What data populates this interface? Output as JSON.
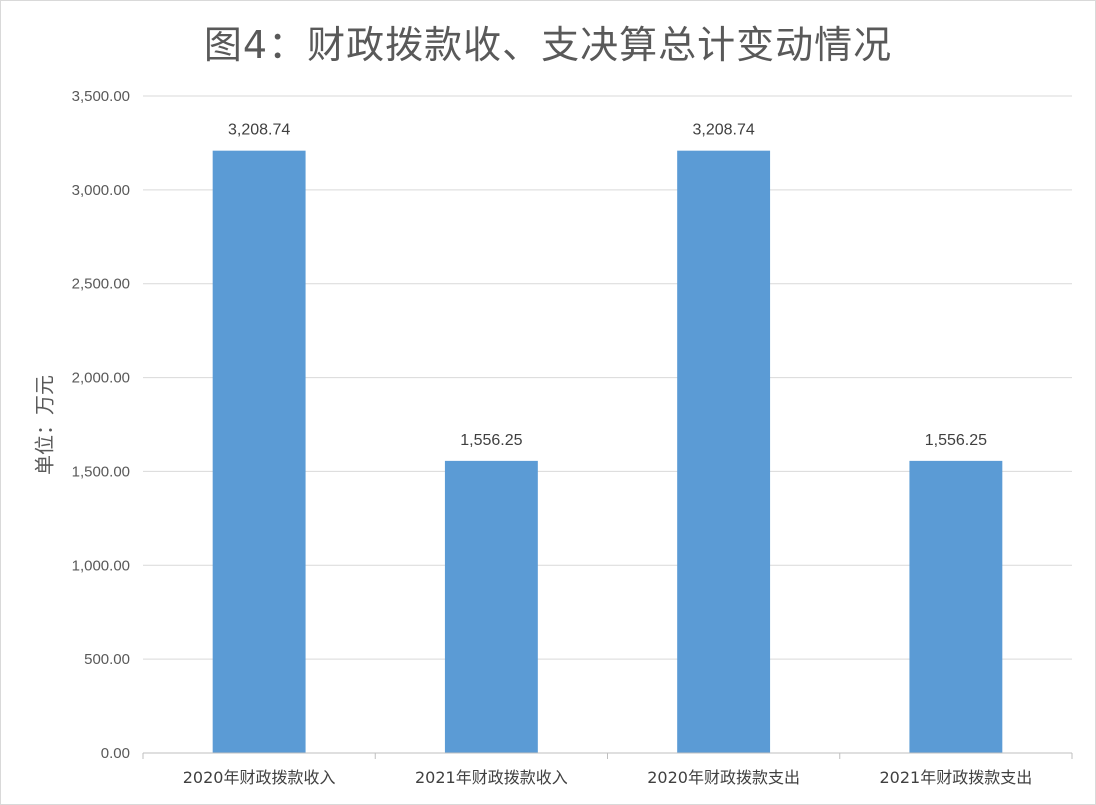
{
  "chart_data": {
    "type": "bar",
    "title": "图4：财政拨款收、支决算总计变动情况",
    "ylabel": "单位：万元",
    "xlabel": "",
    "categories": [
      "2020年财政拨款收入",
      "2021年财政拨款收入",
      "2020年财政拨款支出",
      "2021年财政拨款支出"
    ],
    "values": [
      3208.74,
      1556.25,
      3208.74,
      1556.25
    ],
    "data_labels": [
      "3,208.74",
      "1,556.25",
      "3,208.74",
      "1,556.25"
    ],
    "ylim": [
      0,
      3500
    ],
    "yticks": [
      0,
      500,
      1000,
      1500,
      2000,
      2500,
      3000,
      3500
    ],
    "ytick_labels": [
      "0.00",
      "500.00",
      "1,000.00",
      "1,500.00",
      "2,000.00",
      "2,500.00",
      "3,000.00",
      "3,500.00"
    ],
    "grid": true,
    "bar_color": "#5b9bd5",
    "grid_color": "#d9d9d9"
  }
}
